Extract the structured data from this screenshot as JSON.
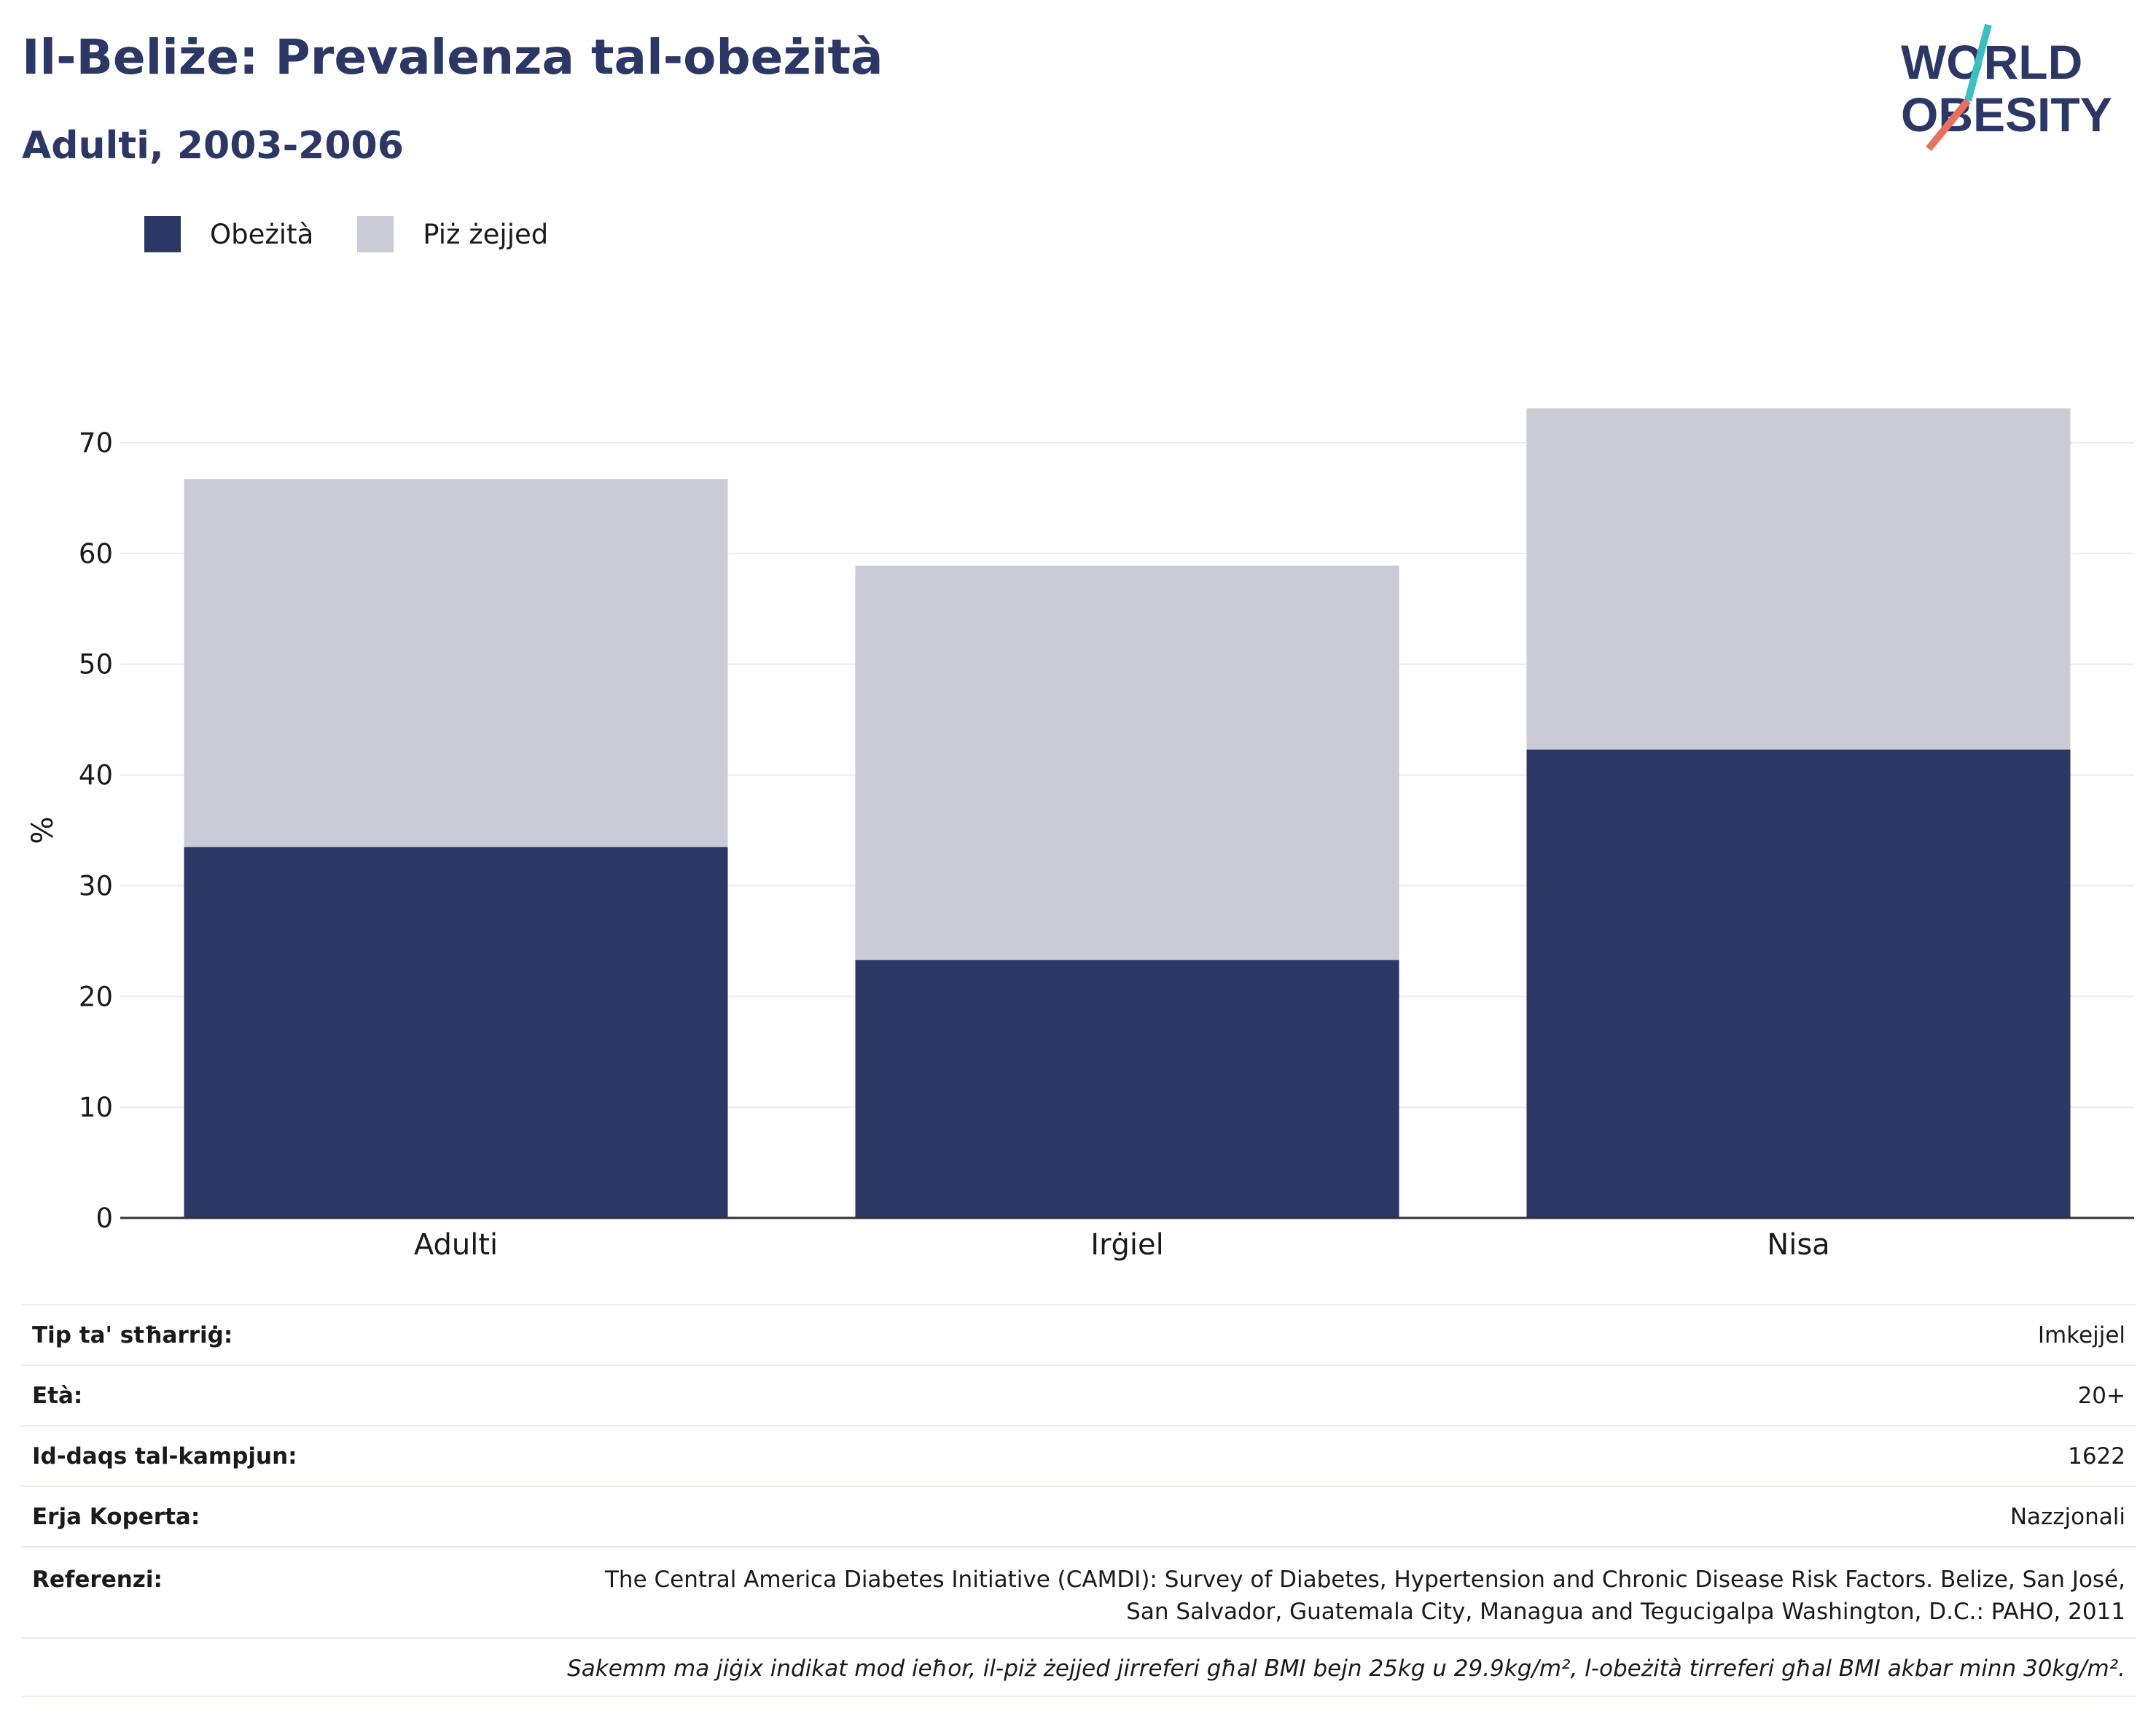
{
  "header": {
    "title": "Il-Beliże: Prevalenza tal-obeżità",
    "subtitle": "Adulti, 2003-2006"
  },
  "logo": {
    "line1": "WORLD",
    "line2": "OBESITY",
    "accent_teal": "#3bbfbf",
    "accent_coral": "#e8705e"
  },
  "legend": [
    {
      "label": "Obeżità",
      "color": "#2b3764"
    },
    {
      "label": "Piż żejjed",
      "color": "#cacbd7"
    }
  ],
  "chart_data": {
    "type": "bar",
    "stacked": true,
    "categories": [
      "Adulti",
      "Irġiel",
      "Nisa"
    ],
    "series": [
      {
        "name": "Obeżità",
        "color": "#2b3764",
        "values": [
          33.5,
          23.3,
          42.3
        ]
      },
      {
        "name": "Piż żejjed",
        "color": "#cacbd7",
        "values": [
          33.2,
          35.6,
          30.8
        ]
      }
    ],
    "ylabel": "%",
    "ylim": [
      0,
      70
    ],
    "yticks": [
      0,
      10,
      20,
      30,
      40,
      50,
      60,
      70
    ],
    "grid": true,
    "legend_position": "top-left"
  },
  "info": [
    {
      "key": "Tip ta' stħarriġ:",
      "value": "Imkejjel"
    },
    {
      "key": "Età:",
      "value": "20+"
    },
    {
      "key": "Id-daqs tal-kampjun:",
      "value": "1622"
    },
    {
      "key": "Erja Koperta:",
      "value": "Nazzjonali"
    },
    {
      "key": "Referenzi:",
      "value_lines": [
        "The Central America Diabetes Initiative (CAMDI): Survey of Diabetes, Hypertension and Chronic Disease Risk Factors. Belize, San José,",
        "San Salvador, Guatemala City, Managua and Tegucigalpa Washington, D.C.: PAHO, 2011"
      ]
    }
  ],
  "note": "Sakemm ma jiġix indikat mod ieħor, il-piż żejjed jirreferi għal BMI bejn 25kg u 29.9kg/m², l-obeżità tirreferi għal BMI akbar minn 30kg/m²."
}
